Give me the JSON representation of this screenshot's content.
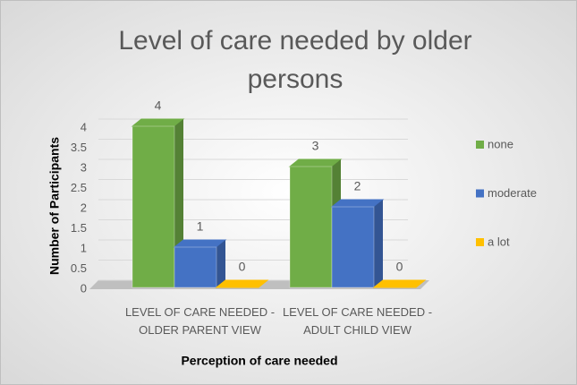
{
  "chart_data": {
    "type": "bar3d",
    "title": "Level of care needed by older persons",
    "x_label": "Perception of care needed",
    "y_label": "Number of Participants",
    "categories": [
      "LEVEL OF CARE NEEDED - OLDER PARENT VIEW",
      "LEVEL OF CARE NEEDED - ADULT CHILD VIEW"
    ],
    "series": [
      {
        "name": "none",
        "color": "#70ad47",
        "values": [
          4,
          3
        ]
      },
      {
        "name": "moderate",
        "color": "#4472c4",
        "values": [
          1,
          2
        ]
      },
      {
        "name": "a lot",
        "color": "#ffc000",
        "values": [
          0,
          0
        ]
      }
    ],
    "ylim": [
      0,
      4
    ],
    "yticks": [
      0,
      0.5,
      1,
      1.5,
      2,
      2.5,
      3,
      3.5,
      4
    ],
    "grid": true,
    "legend": "right"
  }
}
